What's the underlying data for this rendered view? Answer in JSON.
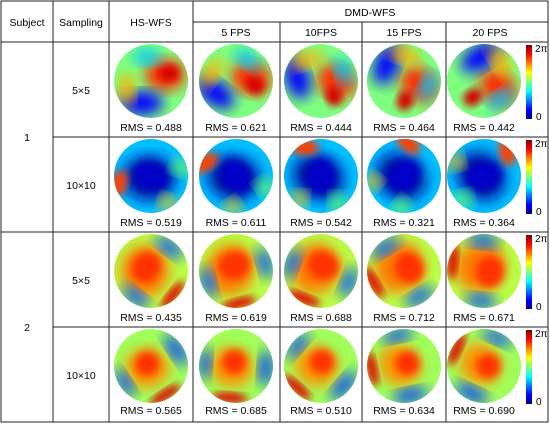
{
  "headers": {
    "subject": "Subject",
    "sampling": "Sampling",
    "hs": "HS-WFS",
    "dmd": "DMD-WFS",
    "fps": [
      "5 FPS",
      "10FPS",
      "15 FPS",
      "20 FPS"
    ]
  },
  "colorbar": {
    "top": "2π",
    "bottom": "0"
  },
  "colormap": "jet",
  "rows": [
    {
      "subject": "1",
      "sampling": "5×5",
      "rms": [
        "RMS = 0.488",
        "RMS = 0.621",
        "RMS = 0.444",
        "RMS = 0.464",
        "RMS = 0.442"
      ]
    },
    {
      "subject": "",
      "sampling": "10×10",
      "rms": [
        "RMS = 0.519",
        "RMS = 0.611",
        "RMS = 0.542",
        "RMS = 0.321",
        "RMS = 0.364"
      ]
    },
    {
      "subject": "2",
      "sampling": "5×5",
      "rms": [
        "RMS = 0.435",
        "RMS = 0.619",
        "RMS = 0.688",
        "RMS = 0.712",
        "RMS = 0.671"
      ]
    },
    {
      "subject": "",
      "sampling": "10×10",
      "rms": [
        "RMS = 0.565",
        "RMS = 0.685",
        "RMS = 0.510",
        "RMS = 0.634",
        "RMS = 0.690"
      ]
    }
  ]
}
